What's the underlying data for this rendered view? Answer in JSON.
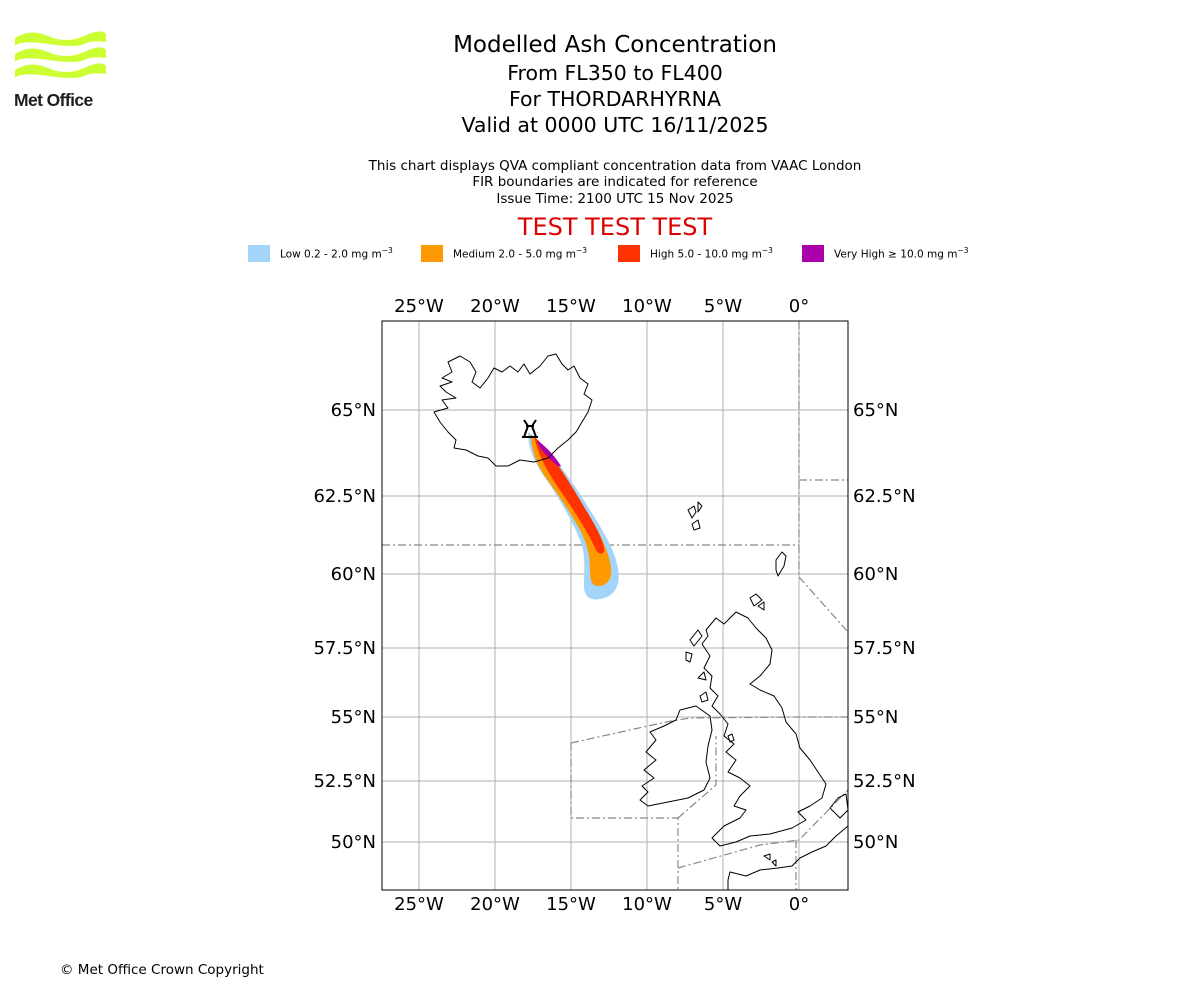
{
  "logo": {
    "text": "Met Office",
    "color": "#ccff33"
  },
  "title": {
    "line1": "Modelled Ash Concentration",
    "line2": "From FL350 to FL400",
    "line3": "For THORDARHYRNA",
    "line4": "Valid at 0000 UTC 16/11/2025"
  },
  "subtitle": {
    "line1": "This chart displays QVA compliant concentration data from VAAC London",
    "line2": "FIR boundaries are indicated for reference",
    "line3": "Issue Time: 2100 UTC 15 Nov 2025"
  },
  "test_banner": "TEST TEST TEST",
  "legend": [
    {
      "label": "Low 0.2 - 2.0 mg m",
      "exp": "−3",
      "color": "#a3d4fa"
    },
    {
      "label": "Medium 2.0 - 5.0 mg m",
      "exp": "−3",
      "color": "#ff9900"
    },
    {
      "label": "High 5.0 - 10.0 mg m",
      "exp": "−3",
      "color": "#ff3300"
    },
    {
      "label": "Very High  ≥  10.0 mg m",
      "exp": "−3",
      "color": "#aa00aa"
    }
  ],
  "map": {
    "lon_ticks": [
      "25°W",
      "20°W",
      "15°W",
      "10°W",
      "5°W",
      "0°"
    ],
    "lat_ticks": [
      "65°N",
      "62.5°N",
      "60°N",
      "57.5°N",
      "55°N",
      "52.5°N",
      "50°N"
    ],
    "volcano_marker": "volcano-icon"
  },
  "copyright": "© Met Office Crown Copyright"
}
